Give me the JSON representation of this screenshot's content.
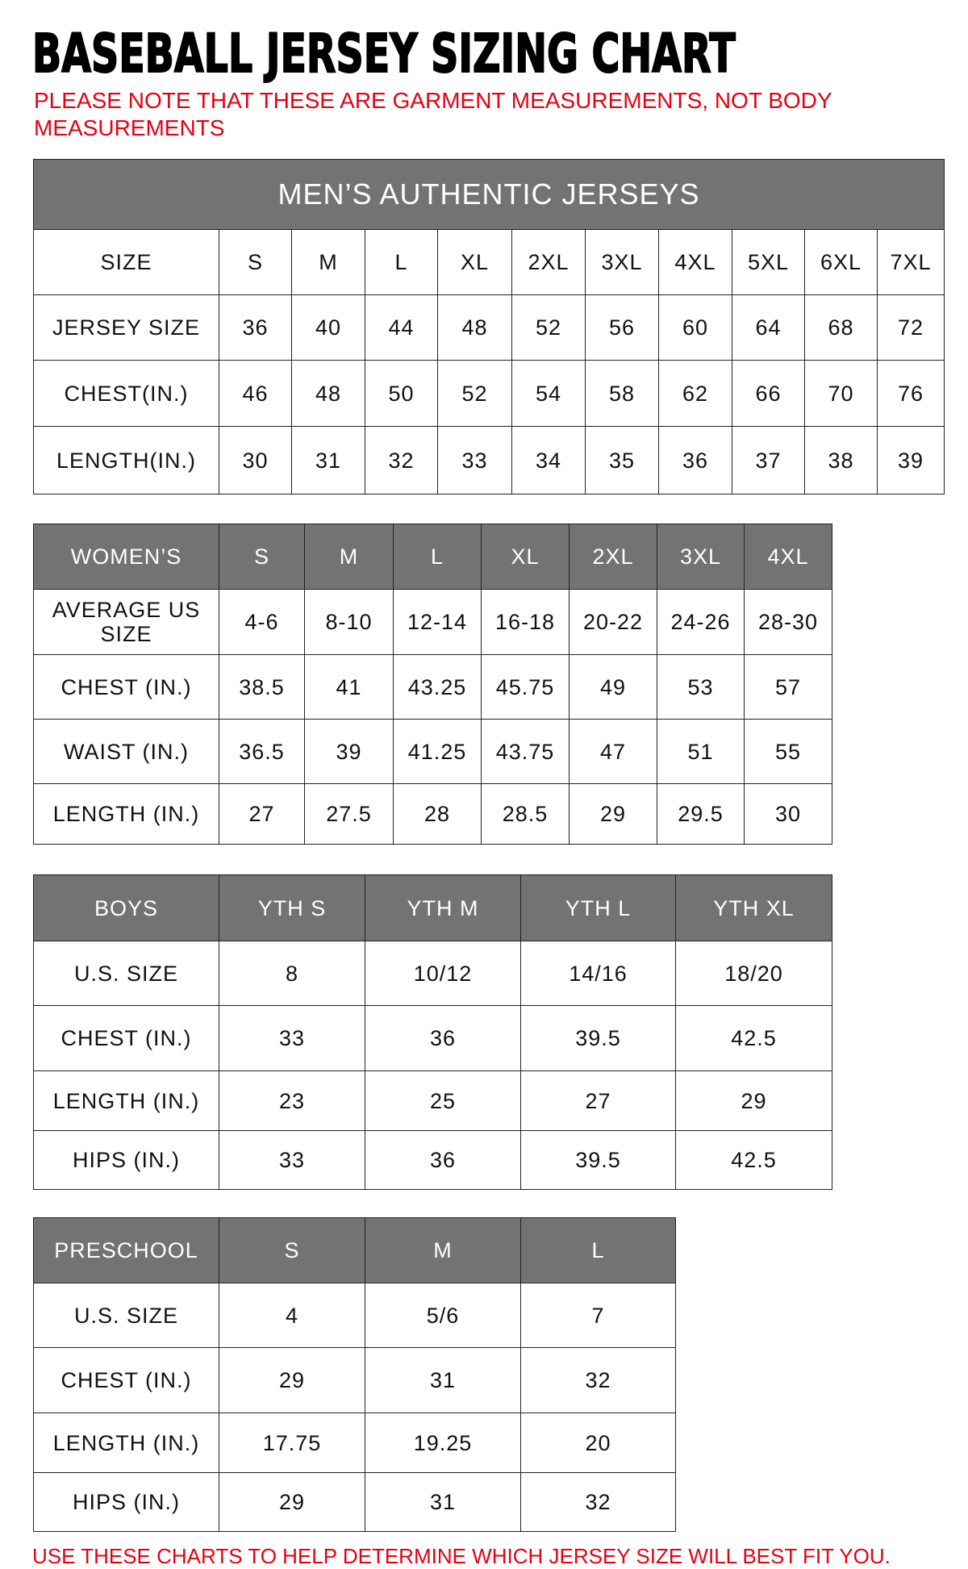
{
  "title": "BASEBALL JERSEY SIZING CHART",
  "note": "PLEASE NOTE THAT THESE ARE GARMENT MEASUREMENTS, NOT BODY MEASUREMENTS",
  "footer": "USE THESE CHARTS TO HELP DETERMINE WHICH JERSEY SIZE WILL BEST FIT YOU.",
  "colors": {
    "header_gray": "#737373",
    "note_red": "#e60012"
  },
  "men": {
    "banner": "MEN’S AUTHENTIC JERSEYS",
    "header": [
      "SIZE",
      "S",
      "M",
      "L",
      "XL",
      "2XL",
      "3XL",
      "4XL",
      "5XL",
      "6XL",
      "7XL"
    ],
    "rows": [
      [
        "JERSEY SIZE",
        "36",
        "40",
        "44",
        "48",
        "52",
        "56",
        "60",
        "64",
        "68",
        "72"
      ],
      [
        "CHEST(IN.)",
        "46",
        "48",
        "50",
        "52",
        "54",
        "58",
        "62",
        "66",
        "70",
        "76"
      ],
      [
        "LENGTH(IN.)",
        "30",
        "31",
        "32",
        "33",
        "34",
        "35",
        "36",
        "37",
        "38",
        "39"
      ]
    ]
  },
  "women": {
    "header": [
      "WOMEN’S",
      "S",
      "M",
      "L",
      "XL",
      "2XL",
      "3XL",
      "4XL"
    ],
    "rows": [
      [
        "AVERAGE US SIZE",
        "4-6",
        "8-10",
        "12-14",
        "16-18",
        "20-22",
        "24-26",
        "28-30"
      ],
      [
        "CHEST (IN.)",
        "38.5",
        "41",
        "43.25",
        "45.75",
        "49",
        "53",
        "57"
      ],
      [
        "WAIST (IN.)",
        "36.5",
        "39",
        "41.25",
        "43.75",
        "47",
        "51",
        "55"
      ],
      [
        "LENGTH (IN.)",
        "27",
        "27.5",
        "28",
        "28.5",
        "29",
        "29.5",
        "30"
      ]
    ]
  },
  "boys": {
    "header": [
      "BOYS",
      "YTH S",
      "YTH M",
      "YTH L",
      "YTH XL"
    ],
    "rows": [
      [
        "U.S. SIZE",
        "8",
        "10/12",
        "14/16",
        "18/20"
      ],
      [
        "CHEST (IN.)",
        "33",
        "36",
        "39.5",
        "42.5"
      ],
      [
        "LENGTH (IN.)",
        "23",
        "25",
        "27",
        "29"
      ],
      [
        "HIPS (IN.)",
        "33",
        "36",
        "39.5",
        "42.5"
      ]
    ]
  },
  "preschool": {
    "header": [
      "PRESCHOOL",
      "S",
      "M",
      "L"
    ],
    "rows": [
      [
        "U.S. SIZE",
        "4",
        "5/6",
        "7"
      ],
      [
        "CHEST (IN.)",
        "29",
        "31",
        "32"
      ],
      [
        "LENGTH (IN.)",
        "17.75",
        "19.25",
        "20"
      ],
      [
        "HIPS (IN.)",
        "29",
        "31",
        "32"
      ]
    ]
  }
}
